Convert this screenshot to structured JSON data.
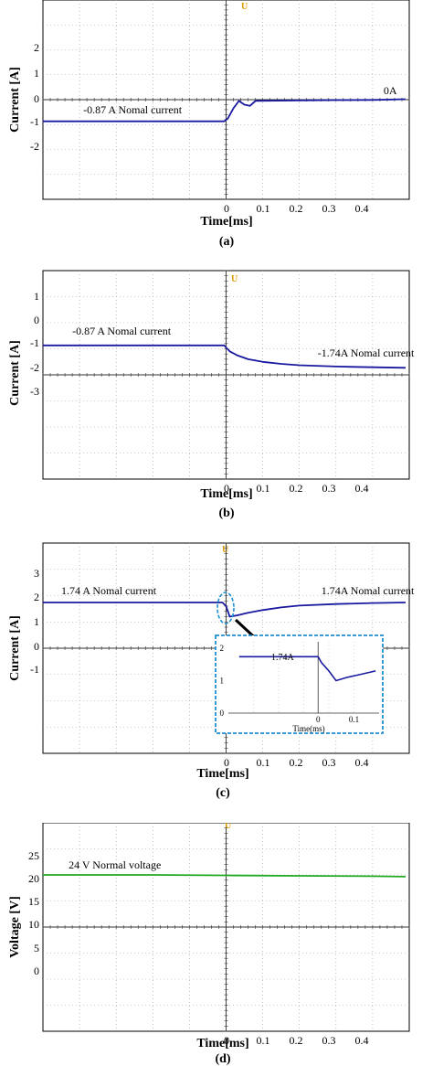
{
  "chart_data": [
    {
      "type": "line",
      "caption": "(a)",
      "xlabel": "Time[ms]",
      "ylabel": "Current [A]",
      "xlim": [
        -0.5,
        0.5
      ],
      "ylim": [
        -4,
        4
      ],
      "xticks": [
        "0",
        "0.1",
        "0.2",
        "0.3",
        "0.4"
      ],
      "yticks": [
        "2",
        "1",
        "0",
        "-1",
        "-2"
      ],
      "trigger_label": "U",
      "series": [
        {
          "color": "#1a1aa0",
          "x": [
            -0.5,
            -0.005,
            0.005,
            0.02,
            0.035,
            0.05,
            0.065,
            0.08,
            0.2,
            0.3,
            0.4,
            0.49
          ],
          "y": [
            -0.87,
            -0.87,
            -0.75,
            -0.35,
            -0.05,
            -0.2,
            -0.25,
            -0.05,
            -0.03,
            -0.02,
            -0.01,
            0.02
          ]
        }
      ],
      "annotations": [
        {
          "text": "-0.87 A Nomal current",
          "x": -0.39,
          "y": -0.55
        },
        {
          "text": "0A",
          "x": 0.43,
          "y": 0.22
        }
      ]
    },
    {
      "type": "line",
      "caption": "(b)",
      "xlabel": "Time[ms]",
      "ylabel": "Current [A]",
      "xlim": [
        -0.5,
        0.5
      ],
      "ylim": [
        -6,
        2
      ],
      "xticks": [
        "0",
        "0.1",
        "0.2",
        "0.3",
        "0.4"
      ],
      "yticks": [
        "1",
        "0",
        "-1",
        "-2",
        "-3"
      ],
      "trigger_label": "U",
      "series": [
        {
          "color": "#1a1aa0",
          "x": [
            -0.5,
            -0.005,
            0.0,
            0.01,
            0.03,
            0.06,
            0.1,
            0.15,
            0.2,
            0.3,
            0.4,
            0.49
          ],
          "y": [
            -0.87,
            -0.87,
            -0.95,
            -1.1,
            -1.25,
            -1.4,
            -1.5,
            -1.58,
            -1.63,
            -1.68,
            -1.71,
            -1.73
          ]
        }
      ],
      "annotations": [
        {
          "text": "-0.87 A Nomal current",
          "x": -0.42,
          "y": -0.45
        },
        {
          "text": "-1.74A Nomal current",
          "x": 0.25,
          "y": -1.3
        }
      ]
    },
    {
      "type": "line",
      "caption": "(c)",
      "xlabel": "Time[ms]",
      "ylabel": "Current [A]",
      "xlim": [
        -0.5,
        0.5
      ],
      "ylim": [
        -4,
        4
      ],
      "xticks": [
        "0",
        "0.1",
        "0.2",
        "0.3",
        "0.4"
      ],
      "yticks": [
        "3",
        "2",
        "1",
        "0",
        "-1"
      ],
      "trigger_label": "U",
      "series": [
        {
          "color": "#1a1aa0",
          "x": [
            -0.5,
            -0.01,
            0.0,
            0.01,
            0.03,
            0.06,
            0.1,
            0.15,
            0.2,
            0.3,
            0.4,
            0.49
          ],
          "y": [
            1.74,
            1.74,
            1.6,
            1.2,
            1.25,
            1.35,
            1.45,
            1.55,
            1.62,
            1.68,
            1.72,
            1.74
          ]
        }
      ],
      "annotations": [
        {
          "text": "1.74 A Nomal current",
          "x": -0.45,
          "y": 2.05
        },
        {
          "text": "1.74A Nomal current",
          "x": 0.26,
          "y": 2.05
        }
      ],
      "inset": {
        "xlabel": "Time(ms)",
        "xlim": [
          -0.25,
          0.17
        ],
        "ylim": [
          0,
          2.2
        ],
        "xticks": [
          "0",
          "0.1"
        ],
        "yticks": [
          "2",
          "1",
          "0"
        ],
        "label": "1.74A",
        "series": {
          "x": [
            -0.22,
            0.0,
            0.01,
            0.03,
            0.05,
            0.08,
            0.12,
            0.16
          ],
          "y": [
            1.74,
            1.74,
            1.55,
            1.3,
            1.0,
            1.1,
            1.2,
            1.3
          ]
        }
      }
    },
    {
      "type": "line",
      "caption": "(d)",
      "xlabel": "Time[ms]",
      "ylabel": "Voltage [V]",
      "xlim": [
        -0.5,
        0.5
      ],
      "ylim": [
        -12,
        36
      ],
      "xticks": [
        "0",
        "0.1",
        "0.2",
        "0.3",
        "0.4"
      ],
      "yticks": [
        "25",
        "20",
        "15",
        "10",
        "5",
        "0"
      ],
      "trigger_label": "U",
      "series": [
        {
          "color": "#22aa22",
          "x": [
            -0.5,
            -0.2,
            0.0,
            0.2,
            0.4,
            0.49
          ],
          "y": [
            24.0,
            24.0,
            23.9,
            23.8,
            23.7,
            23.6
          ]
        }
      ],
      "annotations": [
        {
          "text": "24 V Normal voltage",
          "x": -0.43,
          "y": 25.5
        }
      ]
    }
  ]
}
